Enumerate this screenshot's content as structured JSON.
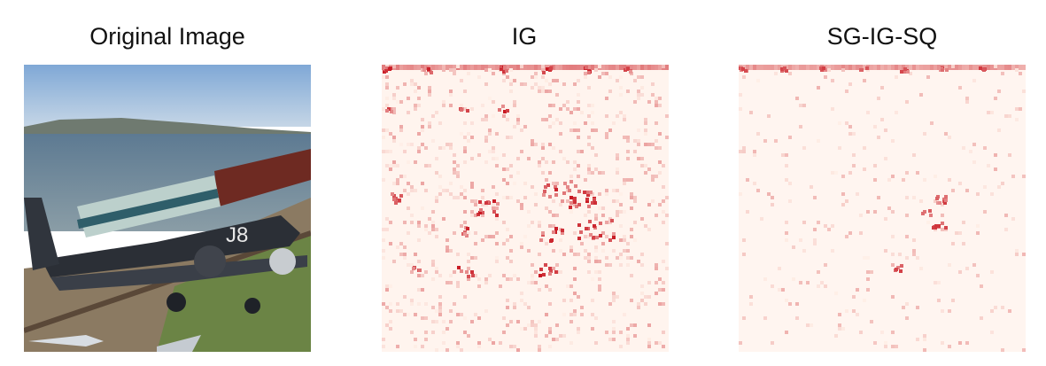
{
  "figure": {
    "panels": [
      {
        "title": "Original Image",
        "kind": "photo"
      },
      {
        "title": "IG",
        "kind": "attribution-heatmap"
      },
      {
        "title": "SG-IG-SQ",
        "kind": "attribution-heatmap"
      }
    ],
    "colors": {
      "background": "#ffffff",
      "heat_low": "#fff4ee",
      "heat_mid": "#f08a74",
      "heat_high": "#c8161d",
      "sky": "#8fb4d8",
      "water": "#58738a",
      "plane": "#2b2f36",
      "train_front": "#c9d6d2",
      "train_cars": "#6e2a22",
      "ground": "#7f6b55",
      "vegetation": "#5f7c3e"
    }
  }
}
